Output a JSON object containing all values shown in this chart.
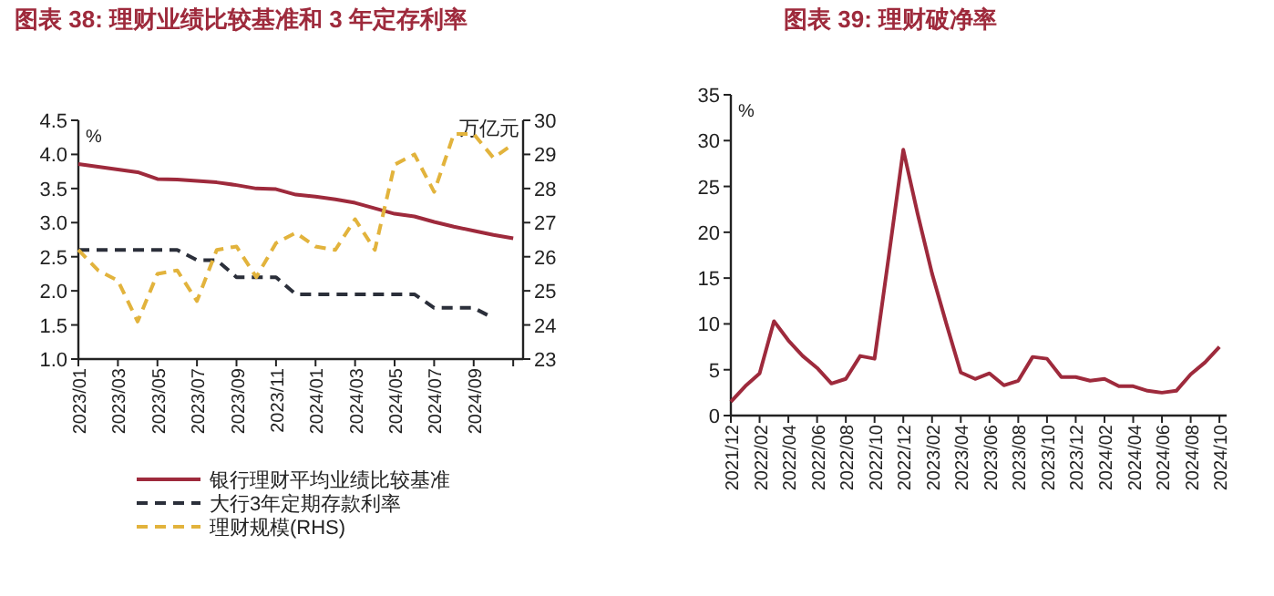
{
  "chart_data": [
    {
      "type": "line",
      "title": "图表 38: 理财业绩比较基准和 3 年定存利率",
      "ylabel": "%",
      "y2label": "万亿元",
      "categories": [
        "2023/01",
        null,
        "2023/03",
        null,
        "2023/05",
        null,
        "2023/07",
        null,
        "2023/09",
        null,
        "2023/11",
        null,
        "2024/01",
        null,
        "2024/03",
        null,
        "2024/05",
        null,
        "2024/07",
        null,
        "2024/09",
        null,
        null
      ],
      "series": [
        {
          "name": "银行理财平均业绩比较基准",
          "color": "#9e2a3c",
          "line_style": "solid",
          "values": [
            3.86,
            3.82,
            3.78,
            3.74,
            3.64,
            3.63,
            3.61,
            3.59,
            3.55,
            3.5,
            3.49,
            3.41,
            3.38,
            3.34,
            3.29,
            3.21,
            3.13,
            3.09,
            3.01,
            2.94,
            2.88,
            2.82,
            2.77
          ]
        },
        {
          "name": "大行3年定期存款利率",
          "color": "#2b2f3a",
          "line_style": "dashed",
          "values": [
            2.6,
            2.6,
            2.6,
            2.6,
            2.6,
            2.6,
            2.45,
            2.45,
            2.2,
            2.2,
            2.2,
            1.95,
            1.95,
            1.95,
            1.95,
            1.95,
            1.95,
            1.95,
            1.75,
            1.75,
            1.75,
            1.6,
            null
          ]
        },
        {
          "name": "理财规模(RHS)",
          "color": "#e2b33c",
          "line_style": "dashed",
          "axis": "y2",
          "values": [
            26.2,
            25.6,
            25.3,
            24.1,
            25.5,
            25.6,
            24.7,
            26.2,
            26.3,
            25.4,
            26.4,
            26.7,
            26.3,
            26.2,
            27.1,
            26.2,
            28.7,
            29.0,
            27.9,
            29.6,
            29.6,
            28.9,
            29.3
          ]
        }
      ],
      "ylim": [
        1,
        4.5
      ],
      "yticks": [
        {
          "value": 1,
          "label": "1.0"
        },
        {
          "value": 1.5,
          "label": "1.5"
        },
        {
          "value": 2,
          "label": "2.0"
        },
        {
          "value": 2.5,
          "label": "2.5"
        },
        {
          "value": 3,
          "label": "3.0"
        },
        {
          "value": 3.5,
          "label": "3.5"
        },
        {
          "value": 4,
          "label": "4.0"
        },
        {
          "value": 4.5,
          "label": "4.5"
        }
      ],
      "y2lim": [
        23,
        30
      ],
      "y2ticks": [
        23,
        24,
        25,
        26,
        27,
        28,
        29,
        30
      ],
      "legend": "bottom"
    },
    {
      "type": "line",
      "title": "图表 39: 理财破净率",
      "ylabel": "%",
      "categories": [
        "2021/12",
        null,
        "2022/02",
        null,
        "2022/04",
        null,
        "2022/06",
        null,
        "2022/08",
        null,
        "2022/10",
        null,
        "2022/12",
        null,
        "2023/02",
        null,
        "2023/04",
        null,
        "2023/06",
        null,
        "2023/08",
        null,
        "2023/10",
        null,
        "2023/12",
        null,
        "2024/02",
        null,
        "2024/04",
        null,
        "2024/06",
        null,
        "2024/08",
        null,
        "2024/10"
      ],
      "series": [
        {
          "color": "#9e2a3c",
          "line_style": "solid",
          "values": [
            1.5,
            3.2,
            4.6,
            10.3,
            8.2,
            6.5,
            5.2,
            3.5,
            4.0,
            6.5,
            6.2,
            17.5,
            29.0,
            22.0,
            15.5,
            10.0,
            4.7,
            4.0,
            4.6,
            3.3,
            3.8,
            6.4,
            6.2,
            4.2,
            4.2,
            3.8,
            4.0,
            3.2,
            3.2,
            2.7,
            2.5,
            2.7,
            4.5,
            5.8,
            7.5
          ]
        }
      ],
      "ylim": [
        0,
        35
      ],
      "yticks": [
        0,
        5,
        10,
        15,
        20,
        25,
        30,
        35
      ],
      "legend": false
    }
  ]
}
